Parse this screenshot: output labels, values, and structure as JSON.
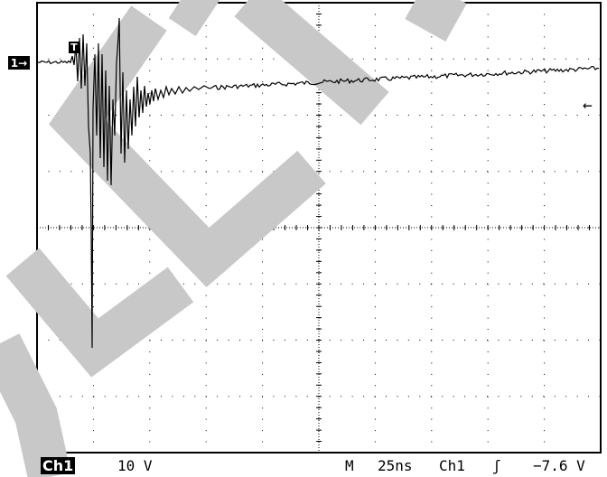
{
  "channel_marker": "1→",
  "trigger_marker": "T",
  "trigger_level_marker": "←",
  "status": {
    "channel": "Ch1",
    "volts_per_div": "10 V",
    "mode": "M",
    "time_per_div": "25ns",
    "trigger_channel": "Ch1",
    "trigger_slope": "ʃ",
    "trigger_level": "−7.6 V"
  },
  "watermark_color": "#c8c8c8",
  "trace_color": "#000000",
  "grid_color": "#000000"
}
